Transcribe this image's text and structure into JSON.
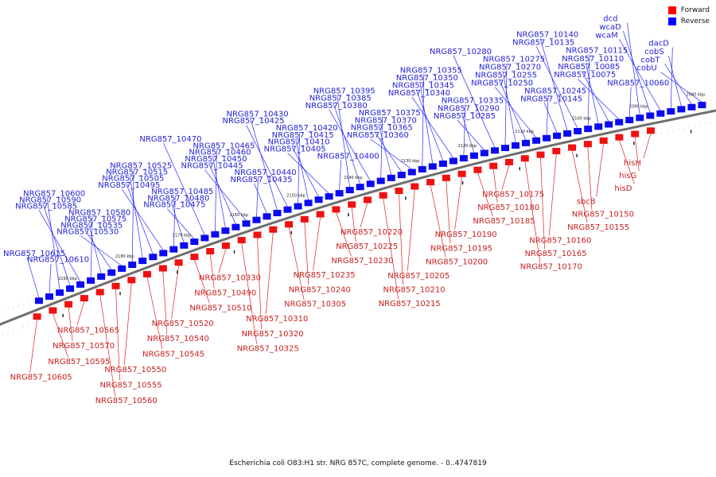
{
  "legend": {
    "forward_label": "Forward",
    "reverse_label": "Reverse",
    "forward_color": "#ff0000",
    "reverse_color": "#0000ff"
  },
  "caption": "Escherichia coli O83:H1 str. NRG 857C, complete genome. - 0..4747819",
  "ticks": [
    "2080 kbp",
    "2090 kbp",
    "2100 kbp",
    "2110 kbp",
    "2120 kbp",
    "2130 kbp",
    "2140 kbp",
    "2150 kbp",
    "2160 kbp",
    "2170 kbp",
    "2180 kbp",
    "2190 kbp"
  ],
  "reverse_labels": [
    "cobU",
    "cobT",
    "cobS",
    "dacD",
    "wcaM",
    "wcaD",
    "dcd",
    "NRG857_10060",
    "NRG857_10075",
    "NRG857_10085",
    "NRG857_10110",
    "NRG857_10115",
    "NRG857_10135",
    "NRG857_10140",
    "NRG857_10145",
    "NRG857_10245",
    "NRG857_10250",
    "NRG857_10255",
    "NRG857_10270",
    "NRG857_10275",
    "NRG857_10280",
    "NRG857_10285",
    "NRG857_10290",
    "NRG857_10335",
    "NRG857_10340",
    "NRG857_10345",
    "NRG857_10350",
    "NRG857_10355",
    "NRG857_10360",
    "NRG857_10365",
    "NRG857_10370",
    "NRG857_10375",
    "NRG857_10380",
    "NRG857_10385",
    "NRG857_10395",
    "NRG857_10400",
    "NRG857_10405",
    "NRG857_10410",
    "NRG857_10415",
    "NRG857_10420",
    "NRG857_10425",
    "NRG857_10430",
    "NRG857_10435",
    "NRG857_10440",
    "NRG857_10445",
    "NRG857_10450",
    "NRG857_10460",
    "NRG857_10465",
    "NRG857_10470",
    "NRG857_10475",
    "NRG857_10480",
    "NRG857_10485",
    "NRG857_10495",
    "NRG857_10505",
    "NRG857_10515",
    "NRG857_10525",
    "NRG857_10530",
    "NRG857_10535",
    "NRG857_10575",
    "NRG857_10580",
    "NRG857_10585",
    "NRG857_10590",
    "NRG857_10600",
    "NRG857_10610",
    "NRG857_10615"
  ],
  "forward_labels": [
    "hisH",
    "hisG",
    "hisD",
    "sbcB",
    "NRG857_10150",
    "NRG857_10155",
    "NRG857_10160",
    "NRG857_10165",
    "NRG857_10170",
    "NRG857_10175",
    "NRG857_10180",
    "NRG857_10185",
    "NRG857_10190",
    "NRG857_10195",
    "NRG857_10200",
    "NRG857_10205",
    "NRG857_10210",
    "NRG857_10215",
    "NRG857_10220",
    "NRG857_10225",
    "NRG857_10230",
    "NRG857_10235",
    "NRG857_10240",
    "NRG857_10305",
    "NRG857_10310",
    "NRG857_10320",
    "NRG857_10325",
    "NRG857_10330",
    "NRG857_10490",
    "NRG857_10510",
    "NRG857_10520",
    "NRG857_10540",
    "NRG857_10545",
    "NRG857_10550",
    "NRG857_10555",
    "NRG857_10560",
    "NRG857_10565",
    "NRG857_10570",
    "NRG857_10595",
    "NRG857_10605"
  ]
}
